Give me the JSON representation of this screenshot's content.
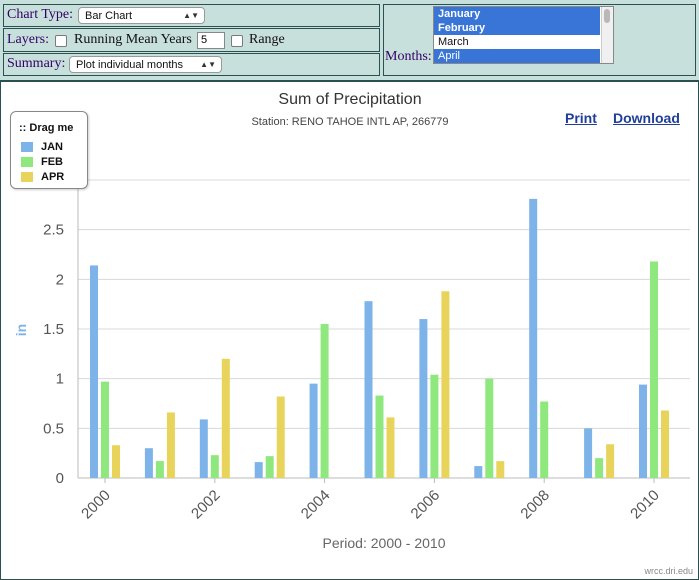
{
  "controls": {
    "chart_type": {
      "label": "Chart Type:",
      "value": "Bar Chart"
    },
    "layers": {
      "label": "Layers:",
      "running_mean_label": "Running Mean Years",
      "running_mean_value": "5",
      "range_label": "Range"
    },
    "summary": {
      "label": "Summary:",
      "value": "Plot individual months"
    },
    "months": {
      "label": "Months:",
      "options": [
        "January",
        "February",
        "March",
        "April"
      ],
      "selected": [
        "January",
        "February",
        "April"
      ]
    }
  },
  "links": {
    "print": "Print",
    "download": "Download"
  },
  "legend": {
    "title": ":: Drag me"
  },
  "credit": "wrcc.dri.edu",
  "chart_data": {
    "type": "bar",
    "title": "Sum of Precipitation",
    "subtitle": "Station: RENO TAHOE INTL AP, 266779",
    "xlabel": "Period: 2000 - 2010",
    "ylabel": "in",
    "ylim": [
      0,
      3
    ],
    "yticks": [
      "0",
      "0.5",
      "1",
      "1.5",
      "2",
      "2.5",
      "3"
    ],
    "categories": [
      "2000",
      "2001",
      "2002",
      "2003",
      "2004",
      "2005",
      "2006",
      "2007",
      "2008",
      "2009",
      "2010"
    ],
    "xtick_labels": [
      "2000",
      "2002",
      "2004",
      "2006",
      "2008",
      "2010"
    ],
    "grid": true,
    "legend_position": "top-left",
    "series": [
      {
        "name": "JAN",
        "color": "#7db3e8",
        "values": [
          2.14,
          0.3,
          0.59,
          0.16,
          0.95,
          1.78,
          1.6,
          0.12,
          2.81,
          0.5,
          0.94
        ]
      },
      {
        "name": "FEB",
        "color": "#8fe87d",
        "values": [
          0.97,
          0.17,
          0.23,
          0.22,
          1.55,
          0.83,
          1.04,
          1.0,
          0.77,
          0.2,
          2.18
        ]
      },
      {
        "name": "APR",
        "color": "#e8d45a",
        "values": [
          0.33,
          0.66,
          1.2,
          0.82,
          0.0,
          0.61,
          1.88,
          0.17,
          0.0,
          0.34,
          0.68
        ]
      }
    ]
  }
}
